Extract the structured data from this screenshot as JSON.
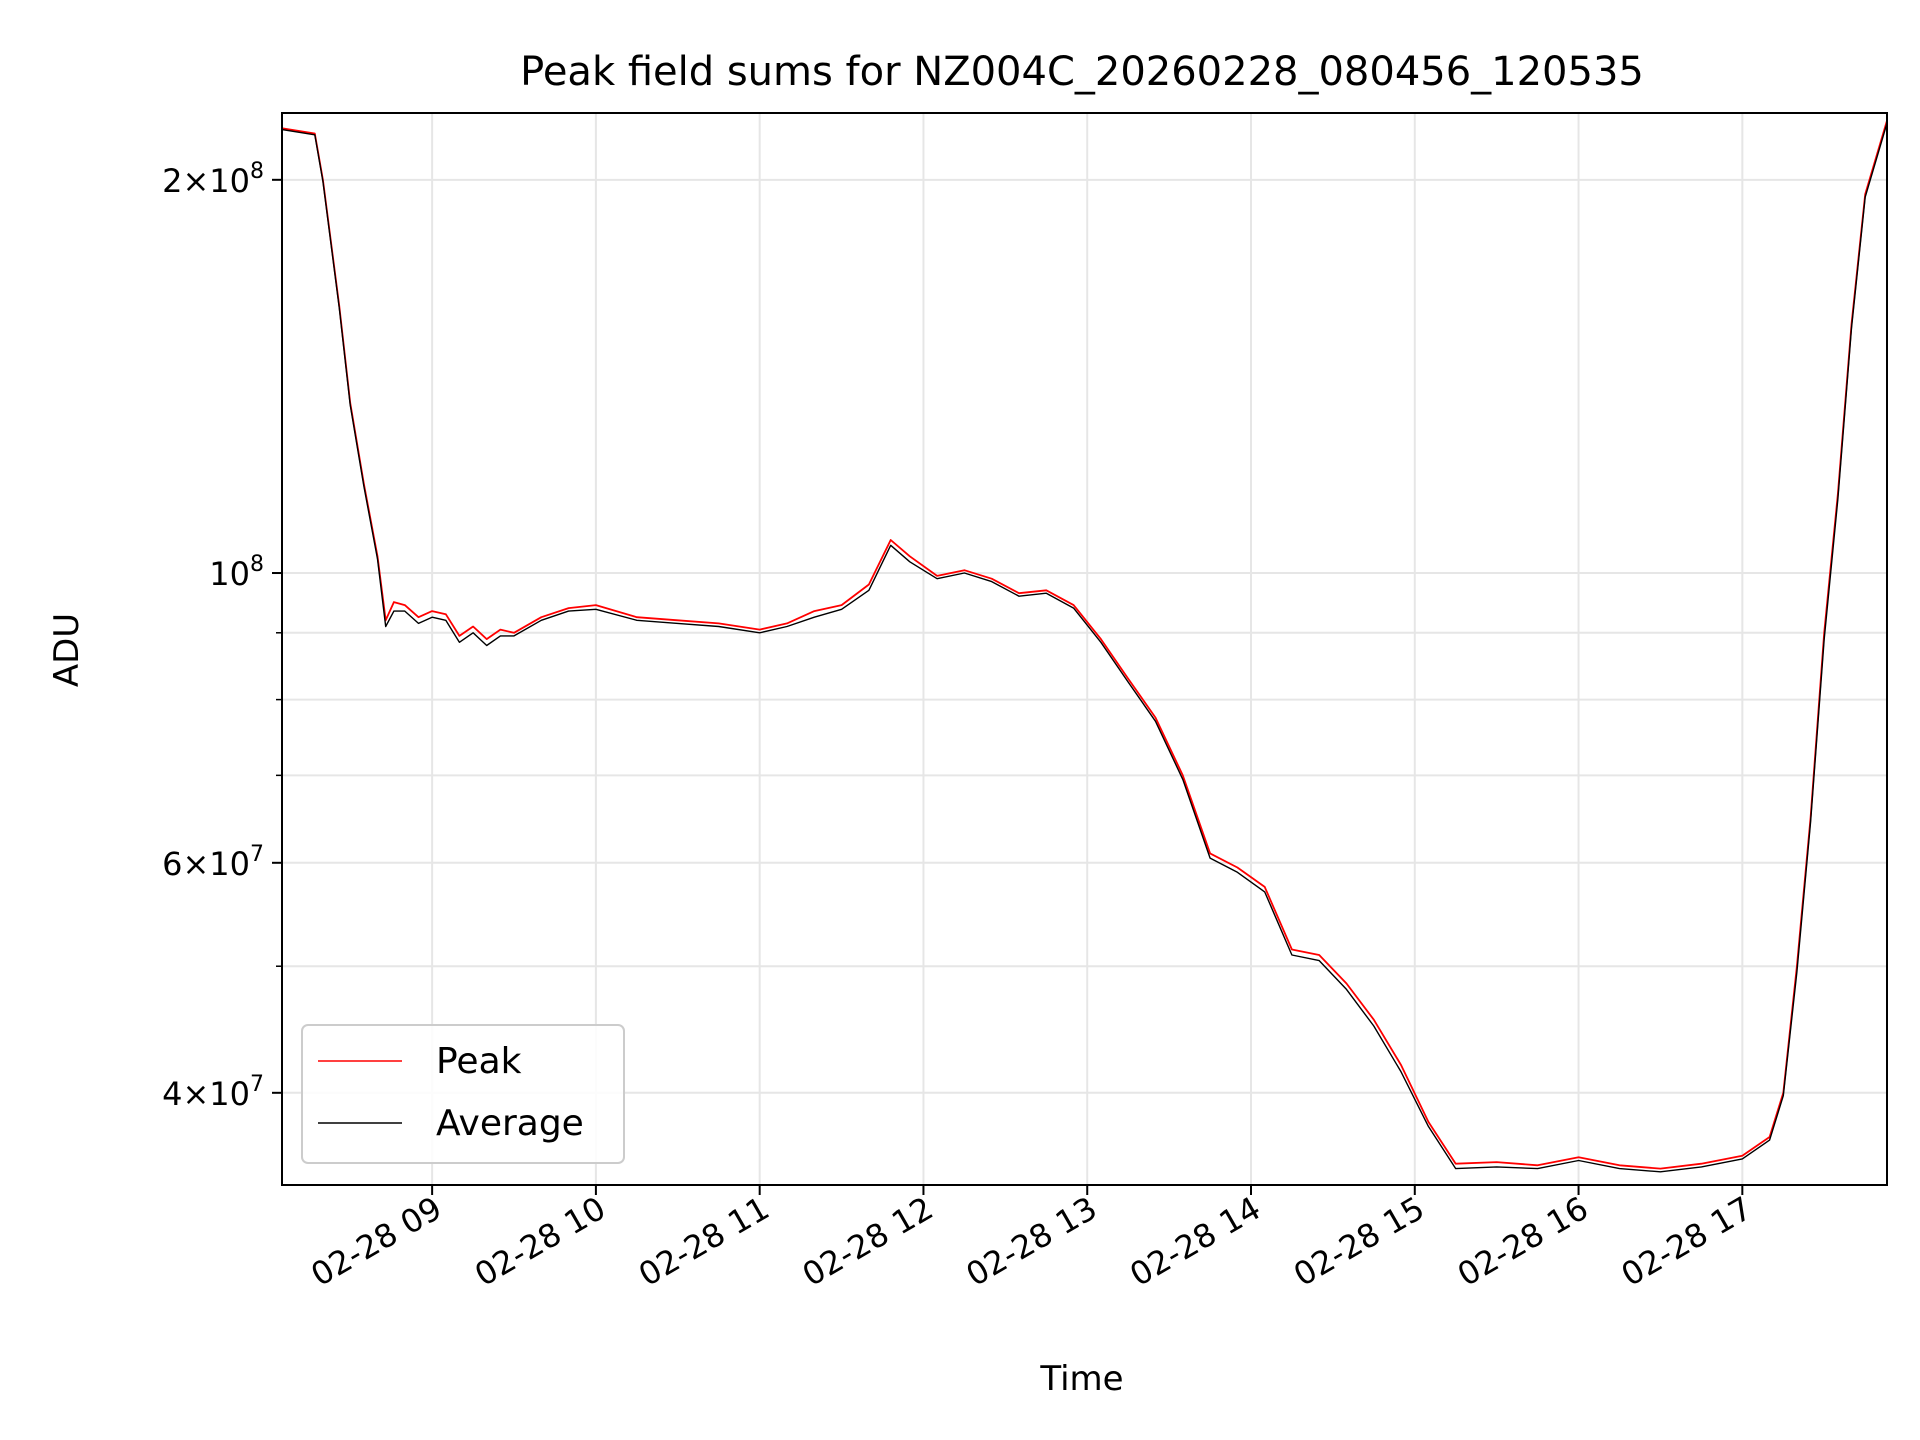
{
  "chart_data": {
    "type": "line",
    "title": "Peak field sums for NZ004C_20260228_080456_120535",
    "xlabel": "Time",
    "ylabel": "ADU",
    "yscale": "log",
    "xlim": [
      "2026-02-28 08:05",
      "2026-02-28 17:53"
    ],
    "ylim": [
      34000000,
      225000000
    ],
    "grid": true,
    "legend_position": "lower-left",
    "x_ticks": [
      {
        "value": "2026-02-28 09:00",
        "label": "02-28 09"
      },
      {
        "value": "2026-02-28 10:00",
        "label": "02-28 10"
      },
      {
        "value": "2026-02-28 11:00",
        "label": "02-28 11"
      },
      {
        "value": "2026-02-28 12:00",
        "label": "02-28 12"
      },
      {
        "value": "2026-02-28 13:00",
        "label": "02-28 13"
      },
      {
        "value": "2026-02-28 14:00",
        "label": "02-28 14"
      },
      {
        "value": "2026-02-28 15:00",
        "label": "02-28 15"
      },
      {
        "value": "2026-02-28 16:00",
        "label": "02-28 16"
      },
      {
        "value": "2026-02-28 17:00",
        "label": "02-28 17"
      }
    ],
    "y_ticks": [
      {
        "value": 40000000,
        "mantissa": "4",
        "exponent": "7"
      },
      {
        "value": 60000000,
        "mantissa": "6",
        "exponent": "7"
      },
      {
        "value": 100000000,
        "mantissa": "",
        "exponent": "8"
      },
      {
        "value": 200000000,
        "mantissa": "2",
        "exponent": "8"
      }
    ],
    "y_minor_ticks": [
      50000000,
      70000000,
      80000000,
      90000000
    ],
    "series": [
      {
        "name": "Peak",
        "color": "#ff0000",
        "x": [
          "2026-02-28 08:05",
          "2026-02-28 08:17",
          "2026-02-28 08:20",
          "2026-02-28 08:26",
          "2026-02-28 08:30",
          "2026-02-28 08:35",
          "2026-02-28 08:40",
          "2026-02-28 08:43",
          "2026-02-28 08:46",
          "2026-02-28 08:50",
          "2026-02-28 08:55",
          "2026-02-28 09:00",
          "2026-02-28 09:05",
          "2026-02-28 09:10",
          "2026-02-28 09:15",
          "2026-02-28 09:20",
          "2026-02-28 09:25",
          "2026-02-28 09:30",
          "2026-02-28 09:40",
          "2026-02-28 09:50",
          "2026-02-28 10:00",
          "2026-02-28 10:15",
          "2026-02-28 10:30",
          "2026-02-28 10:45",
          "2026-02-28 11:00",
          "2026-02-28 11:10",
          "2026-02-28 11:20",
          "2026-02-28 11:30",
          "2026-02-28 11:40",
          "2026-02-28 11:48",
          "2026-02-28 11:55",
          "2026-02-28 12:05",
          "2026-02-28 12:15",
          "2026-02-28 12:25",
          "2026-02-28 12:35",
          "2026-02-28 12:45",
          "2026-02-28 12:55",
          "2026-02-28 13:05",
          "2026-02-28 13:15",
          "2026-02-28 13:25",
          "2026-02-28 13:35",
          "2026-02-28 13:45",
          "2026-02-28 13:55",
          "2026-02-28 14:05",
          "2026-02-28 14:15",
          "2026-02-28 14:25",
          "2026-02-28 14:35",
          "2026-02-28 14:45",
          "2026-02-28 14:55",
          "2026-02-28 15:05",
          "2026-02-28 15:15",
          "2026-02-28 15:30",
          "2026-02-28 15:45",
          "2026-02-28 16:00",
          "2026-02-28 16:15",
          "2026-02-28 16:30",
          "2026-02-28 16:45",
          "2026-02-28 17:00",
          "2026-02-28 17:10",
          "2026-02-28 17:15",
          "2026-02-28 17:20",
          "2026-02-28 17:25",
          "2026-02-28 17:30",
          "2026-02-28 17:35",
          "2026-02-28 17:40",
          "2026-02-28 17:45",
          "2026-02-28 17:53"
        ],
        "values": [
          219000000,
          217000000,
          200000000,
          160000000,
          135000000,
          117000000,
          103000000,
          92000000,
          95000000,
          94500000,
          92500000,
          93500000,
          93000000,
          89500000,
          91000000,
          89000000,
          90500000,
          90000000,
          92500000,
          94000000,
          94500000,
          92500000,
          92000000,
          91500000,
          90500000,
          91500000,
          93500000,
          94500000,
          98000000,
          106000000,
          103000000,
          99500000,
          100500000,
          99000000,
          96500000,
          97000000,
          94500000,
          89000000,
          83000000,
          77500000,
          70000000,
          61000000,
          59500000,
          57500000,
          51500000,
          51000000,
          48500000,
          45500000,
          42000000,
          38000000,
          35300000,
          35400000,
          35200000,
          35700000,
          35200000,
          35000000,
          35300000,
          35800000,
          37000000,
          40000000,
          50000000,
          65000000,
          90000000,
          115000000,
          155000000,
          195000000,
          222000000
        ]
      },
      {
        "name": "Average",
        "color": "#000000",
        "x": [
          "2026-02-28 08:05",
          "2026-02-28 08:17",
          "2026-02-28 08:20",
          "2026-02-28 08:26",
          "2026-02-28 08:30",
          "2026-02-28 08:35",
          "2026-02-28 08:40",
          "2026-02-28 08:43",
          "2026-02-28 08:46",
          "2026-02-28 08:50",
          "2026-02-28 08:55",
          "2026-02-28 09:00",
          "2026-02-28 09:05",
          "2026-02-28 09:10",
          "2026-02-28 09:15",
          "2026-02-28 09:20",
          "2026-02-28 09:25",
          "2026-02-28 09:30",
          "2026-02-28 09:40",
          "2026-02-28 09:50",
          "2026-02-28 10:00",
          "2026-02-28 10:15",
          "2026-02-28 10:30",
          "2026-02-28 10:45",
          "2026-02-28 11:00",
          "2026-02-28 11:10",
          "2026-02-28 11:20",
          "2026-02-28 11:30",
          "2026-02-28 11:40",
          "2026-02-28 11:48",
          "2026-02-28 11:55",
          "2026-02-28 12:05",
          "2026-02-28 12:15",
          "2026-02-28 12:25",
          "2026-02-28 12:35",
          "2026-02-28 12:45",
          "2026-02-28 12:55",
          "2026-02-28 13:05",
          "2026-02-28 13:15",
          "2026-02-28 13:25",
          "2026-02-28 13:35",
          "2026-02-28 13:45",
          "2026-02-28 13:55",
          "2026-02-28 14:05",
          "2026-02-28 14:15",
          "2026-02-28 14:25",
          "2026-02-28 14:35",
          "2026-02-28 14:45",
          "2026-02-28 14:55",
          "2026-02-28 15:05",
          "2026-02-28 15:15",
          "2026-02-28 15:30",
          "2026-02-28 15:45",
          "2026-02-28 16:00",
          "2026-02-28 16:15",
          "2026-02-28 16:30",
          "2026-02-28 16:45",
          "2026-02-28 17:00",
          "2026-02-28 17:10",
          "2026-02-28 17:15",
          "2026-02-28 17:20",
          "2026-02-28 17:25",
          "2026-02-28 17:30",
          "2026-02-28 17:35",
          "2026-02-28 17:40",
          "2026-02-28 17:45",
          "2026-02-28 17:53"
        ],
        "values": [
          218500000,
          216500000,
          199500000,
          159500000,
          134500000,
          116500000,
          102500000,
          91000000,
          93500000,
          93500000,
          91500000,
          92500000,
          92000000,
          88500000,
          90000000,
          88000000,
          89500000,
          89500000,
          92000000,
          93500000,
          93800000,
          92000000,
          91500000,
          91000000,
          90000000,
          91000000,
          92500000,
          93800000,
          97000000,
          105000000,
          102000000,
          99000000,
          100000000,
          98500000,
          96000000,
          96500000,
          94000000,
          88500000,
          82500000,
          77000000,
          69500000,
          60500000,
          59000000,
          57000000,
          51000000,
          50500000,
          48000000,
          45000000,
          41500000,
          37700000,
          35000000,
          35100000,
          35000000,
          35500000,
          35000000,
          34800000,
          35100000,
          35600000,
          36800000,
          39800000,
          49500000,
          64500000,
          89000000,
          114000000,
          154000000,
          194000000,
          221000000
        ]
      }
    ]
  }
}
